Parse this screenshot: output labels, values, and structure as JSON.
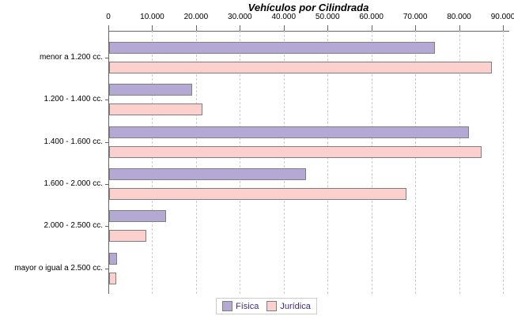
{
  "chart_data": {
    "type": "bar",
    "orientation": "horizontal",
    "title": "Vehículos por Cilindrada",
    "categories": [
      "menor a 1.200 cc.",
      "1.200 - 1.400 cc.",
      "1.400 - 1.600 cc.",
      "1.600 - 2.000 cc.",
      "2.000 - 2.500 cc.",
      "mayor o igual a 2.500 cc."
    ],
    "series": [
      {
        "name": "Física",
        "color": "#B3A9D4",
        "values": [
          74000,
          18500,
          81700,
          44500,
          12600,
          1500
        ]
      },
      {
        "name": "Jurídica",
        "color": "#FCD0CD",
        "values": [
          87000,
          21000,
          84600,
          67400,
          8200,
          1200
        ]
      }
    ],
    "xlim": [
      0,
      90000
    ],
    "x_tick_labels": [
      "0",
      "10.000",
      "20.000",
      "30.000",
      "40.000",
      "50.000",
      "60.000",
      "70.000",
      "80.000",
      "90.000"
    ],
    "grid": "vertical-dashed",
    "legend_position": "bottom-center",
    "colors": {
      "bar_border": "#7F7F7F",
      "axis": "#666666",
      "gridline": "#CCCCCC",
      "label_text": "#000000",
      "legend_text": "#3F2B7E",
      "legend_border": "#CCCCCC",
      "background": "#FFFFFF"
    }
  }
}
